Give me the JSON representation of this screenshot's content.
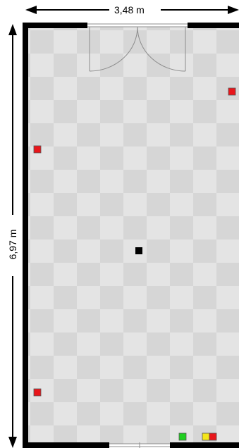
{
  "dimensions": {
    "width_label": "3,48 m",
    "height_label": "6,97 m"
  },
  "colors": {
    "wall": "#000000",
    "floor_light": "#e4e4e4",
    "floor_dark": "#d3d3d3",
    "door_line": "#8c8c8c",
    "marker_red": "#e8161b",
    "marker_green": "#1fcf1f",
    "marker_yellow": "#f5e61a",
    "marker_black": "#000000"
  },
  "markers": [
    {
      "name": "red-marker-top-right",
      "color": "red"
    },
    {
      "name": "red-marker-left-upper",
      "color": "red"
    },
    {
      "name": "black-marker-center",
      "color": "black"
    },
    {
      "name": "red-marker-left-lower",
      "color": "red"
    },
    {
      "name": "green-marker-bottom",
      "color": "green"
    },
    {
      "name": "yellow-marker-bottom",
      "color": "yellow"
    },
    {
      "name": "red-marker-bottom-right",
      "color": "red"
    }
  ]
}
